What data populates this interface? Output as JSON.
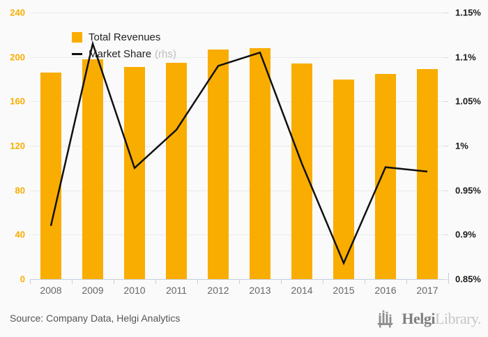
{
  "chart_data": {
    "type": "combo",
    "title": "",
    "categories": [
      "2008",
      "2009",
      "2010",
      "2011",
      "2012",
      "2013",
      "2014",
      "2015",
      "2016",
      "2017"
    ],
    "series": [
      {
        "name": "Total Revenues",
        "type": "bar",
        "axis": "left",
        "color": "#F9AD00",
        "values": [
          186,
          198,
          191,
          195,
          207,
          208,
          194,
          180,
          185,
          189
        ]
      },
      {
        "name": "Market Share",
        "type": "line",
        "axis": "right",
        "color": "#111111",
        "unit": "%",
        "values": [
          0.91,
          1.115,
          0.975,
          1.018,
          1.09,
          1.105,
          0.98,
          0.868,
          0.976,
          0.971
        ]
      }
    ],
    "left_axis": {
      "min": 0,
      "max": 240,
      "step": 40,
      "tick_labels": [
        "0",
        "40",
        "80",
        "120",
        "160",
        "200",
        "240"
      ],
      "color": "#F9AD00"
    },
    "right_axis": {
      "min": 0.85,
      "max": 1.15,
      "step": 0.05,
      "tick_labels": [
        "0.85%",
        "0.9%",
        "0.95%",
        "1%",
        "1.05%",
        "1.1%",
        "1.15%"
      ],
      "color": "#1a1a1a"
    },
    "legend": {
      "position": "top-left",
      "items": [
        {
          "label": "Total Revenues",
          "suffix": ""
        },
        {
          "label": "Market Share",
          "suffix": "(rhs)"
        }
      ]
    },
    "grid": true
  },
  "footer": {
    "source": "Source: Company Data, Helgi Analytics",
    "logo": {
      "icon": "helgi-logo-icon",
      "text_bold": "Helgi",
      "text_light": "Library."
    }
  },
  "colors": {
    "accent_orange": "#F9AD00",
    "line_black": "#111111",
    "grid": "#e9eaee",
    "axis": "#c5cde0",
    "muted_text": "#666666",
    "rhs_text": "#bcbcbc",
    "background": "#fafafa"
  }
}
